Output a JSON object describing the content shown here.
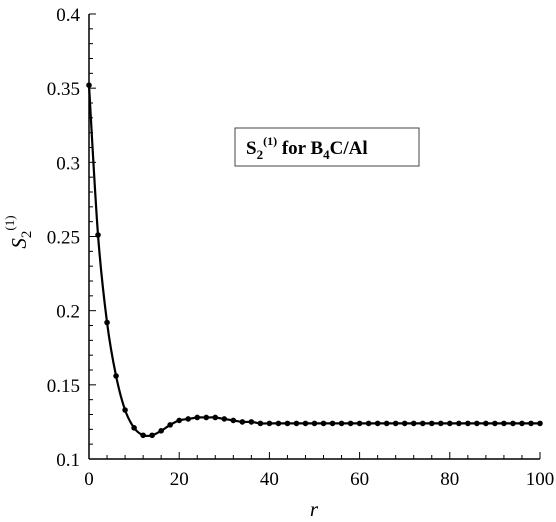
{
  "chart_data": {
    "type": "line",
    "title": "",
    "xlabel": "r",
    "ylabel": "S",
    "ylabel_sub": "2",
    "ylabel_sup": "(1)",
    "xlim": [
      0,
      100
    ],
    "ylim": [
      0.1,
      0.4
    ],
    "xticks": [
      0,
      20,
      40,
      60,
      80,
      100
    ],
    "xtick_labels": [
      "0",
      "20",
      "40",
      "60",
      "80",
      "100"
    ],
    "yticks": [
      0.1,
      0.15,
      0.2,
      0.25,
      0.3,
      0.35,
      0.4
    ],
    "ytick_labels": [
      "0.1",
      "0.15",
      "0.2",
      "0.25",
      "0.3",
      "0.35",
      "0.4"
    ],
    "grid": false,
    "legend_position": "upper-right",
    "legend": {
      "part1": "S",
      "sub1": "2",
      "sup1": "(1)",
      "part2": " for B",
      "sub2": "4",
      "part3": "C/Al"
    },
    "series": [
      {
        "color": "#000000",
        "x": [
          0,
          2,
          4,
          6,
          8,
          10,
          12,
          14,
          16,
          18,
          20,
          22,
          24,
          26,
          28,
          30,
          32,
          34,
          36,
          38,
          40,
          42,
          44,
          46,
          48,
          50,
          52,
          54,
          56,
          58,
          60,
          62,
          64,
          66,
          68,
          70,
          72,
          74,
          76,
          78,
          80,
          82,
          84,
          86,
          88,
          90,
          92,
          94,
          96,
          98,
          100
        ],
        "y": [
          0.352,
          0.251,
          0.192,
          0.156,
          0.133,
          0.121,
          0.116,
          0.116,
          0.119,
          0.123,
          0.126,
          0.127,
          0.128,
          0.128,
          0.128,
          0.127,
          0.126,
          0.125,
          0.125,
          0.124,
          0.124,
          0.124,
          0.124,
          0.124,
          0.124,
          0.124,
          0.124,
          0.124,
          0.124,
          0.124,
          0.124,
          0.124,
          0.124,
          0.124,
          0.124,
          0.124,
          0.124,
          0.124,
          0.124,
          0.124,
          0.124,
          0.124,
          0.124,
          0.124,
          0.124,
          0.124,
          0.124,
          0.124,
          0.124,
          0.124,
          0.124
        ]
      }
    ]
  }
}
